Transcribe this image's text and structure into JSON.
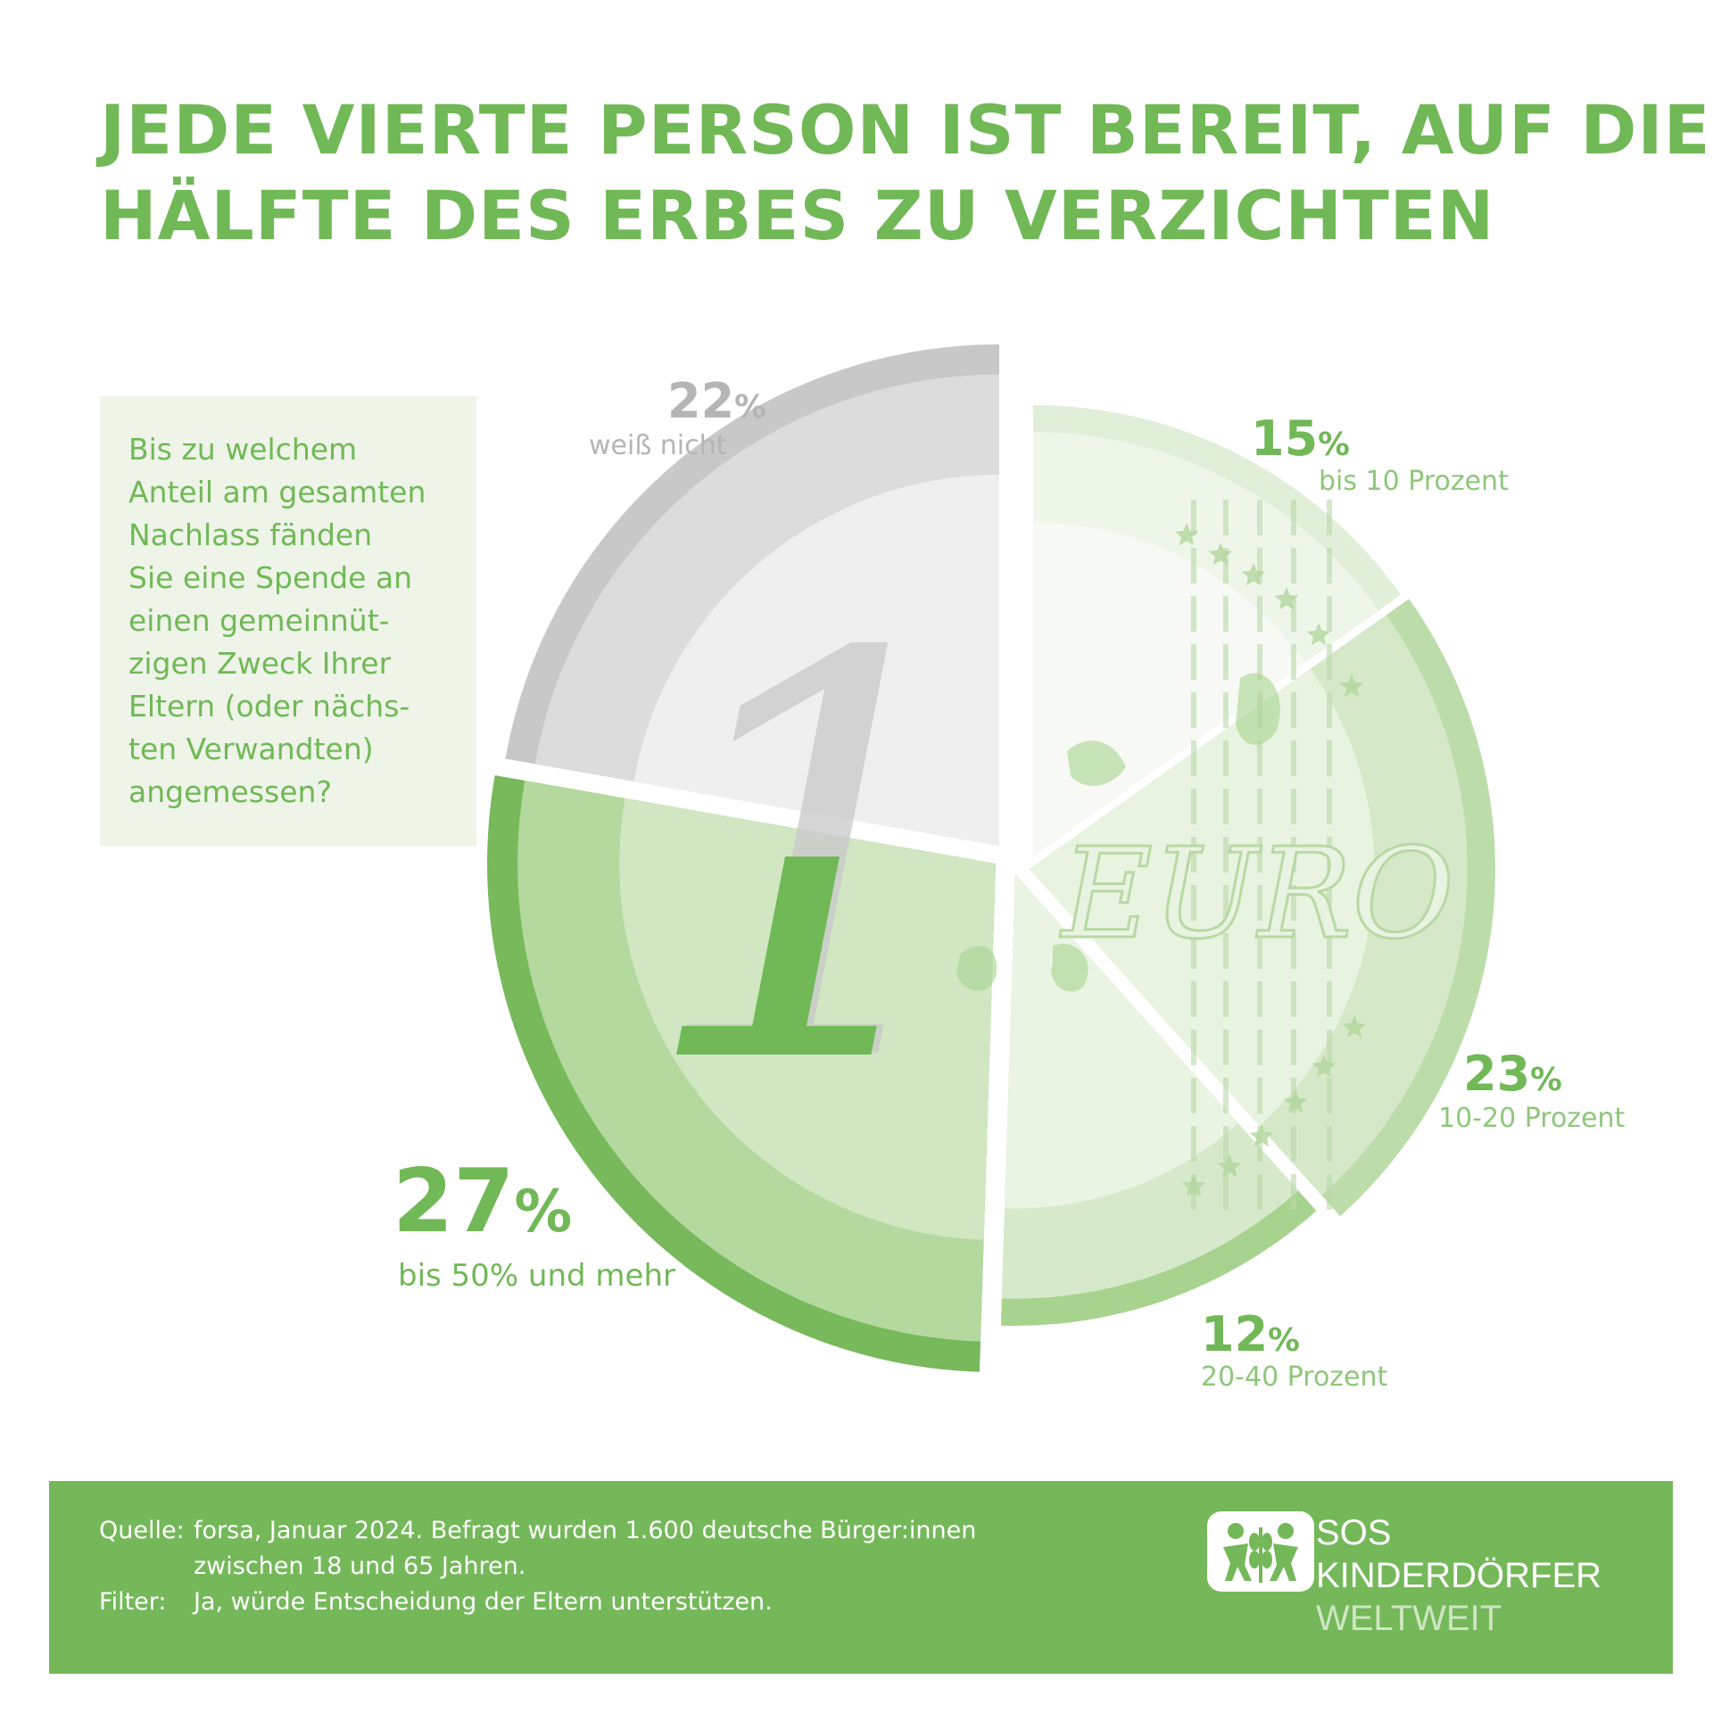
{
  "title": {
    "line1": "JEDE VIERTE PERSON IST BEREIT, AUF DIE",
    "line2": "HÄLFTE DES ERBES ZU VERZICHTEN"
  },
  "question": {
    "lines": [
      "Bis zu welchem",
      "Anteil am gesamten",
      "Nachlass fänden",
      "Sie eine Spende an",
      "einen gemeinnüt-",
      "zigen Zweck Ihrer",
      "Eltern (oder nächs-",
      "ten Verwandten)",
      "angemessen?"
    ]
  },
  "chart_data": {
    "type": "pie",
    "title": "JEDE VIERTE PERSON IST BEREIT, AUF DIE HÄLFTE DES ERBES ZU VERZICHTEN",
    "unit": "%",
    "slices": [
      {
        "label": "bis 10 Prozent",
        "value": 15,
        "value_text": "15",
        "color": "#d7e9cc"
      },
      {
        "label": "10-20 Prozent",
        "value": 23,
        "value_text": "23",
        "color": "#c2e0b0"
      },
      {
        "label": "20-40 Prozent",
        "value": 12,
        "value_text": "12",
        "color": "#d4e9c8"
      },
      {
        "label": "bis 50% und mehr",
        "value": 27,
        "value_text": "27",
        "color": "#a9d592"
      },
      {
        "label": "weiß nicht",
        "value": 22,
        "value_text": "22",
        "color": "#dadada"
      }
    ],
    "percent_symbol": "%",
    "coin_text": "EURO",
    "coin_digit": "1"
  },
  "footer": {
    "source_key": "Quelle:",
    "source_line1": "forsa, Januar 2024. Befragt wurden 1.600 deutsche Bürger:innen",
    "source_line2": "zwischen 18 und 65 Jahren.",
    "filter_key": "Filter:",
    "filter_text": "Ja, würde Entscheidung der Eltern unterstützen.",
    "org_line1": "SOS",
    "org_line2": "KINDERDÖRFER",
    "org_line3": "WELTWEIT"
  },
  "colors": {
    "brand_green": "#71b857",
    "footer_green": "#75b85a",
    "grey_text": "#b5b5b5",
    "light_green_text": "#8ec77a"
  }
}
